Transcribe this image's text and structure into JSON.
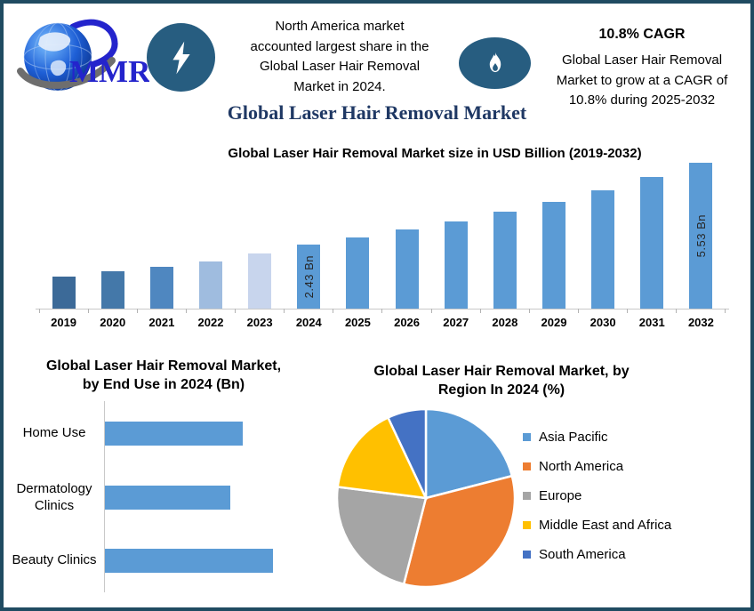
{
  "colors": {
    "frame_border": "#1f4b61",
    "icon_background": "#275d80",
    "main_title": "#1f3864",
    "bar_default": "#5b9bd5",
    "axis_line": "#c9c9c9",
    "logo_blue": "#2424cc"
  },
  "header": {
    "logo": {
      "text": "MMR"
    },
    "statement_lines": [
      "North America market",
      "accounted largest share in the",
      "Global Laser Hair Removal",
      "Market  in 2024."
    ],
    "cagr_heading": "10.8% CAGR",
    "cagr_statement_lines": [
      "Global Laser Hair Removal",
      "Market to grow at a CAGR of",
      "10.8% during 2025-2032"
    ]
  },
  "main_title": "Global Laser Hair Removal Market",
  "chart_data": [
    {
      "id": "market_size",
      "type": "bar",
      "title": "Global Laser Hair Removal Market size in USD Billion (2019-2032)",
      "ylabel": "USD Billion",
      "categories": [
        "2019",
        "2020",
        "2021",
        "2022",
        "2023",
        "2024",
        "2025",
        "2026",
        "2027",
        "2028",
        "2029",
        "2030",
        "2031",
        "2032"
      ],
      "values": [
        1.2,
        1.4,
        1.6,
        1.8,
        2.1,
        2.43,
        2.7,
        3.0,
        3.3,
        3.66,
        4.06,
        4.5,
        4.99,
        5.53
      ],
      "data_labels": {
        "2024": "2.43 Bn",
        "2032": "5.53 Bn"
      },
      "bar_colors": {
        "2019": "#3c6a98",
        "2020": "#4478a9",
        "2021": "#4f87c0",
        "2022": "#9fbcdf",
        "2023": "#c8d5ed",
        "default": "#5b9bd5"
      },
      "ylim": [
        0,
        5.53
      ],
      "grid": false,
      "legend": "none"
    },
    {
      "id": "end_use",
      "type": "bar",
      "orientation": "horizontal",
      "title_lines": [
        "Global Laser Hair Removal Market,",
        "by End Use in 2024 (Bn)"
      ],
      "title": "Global Laser Hair Removal Market, by End Use in 2024 (Bn)",
      "categories": [
        "Home Use",
        "Dermatology Clinics",
        "Beauty Clinics"
      ],
      "values": [
        0.78,
        0.71,
        0.95
      ],
      "bar_color": "#5b9bd5",
      "xlim": [
        0,
        1.0
      ],
      "grid": false,
      "legend": "none"
    },
    {
      "id": "by_region",
      "type": "pie",
      "title_lines": [
        "Global Laser Hair Removal Market, by",
        "Region In 2024 (%)"
      ],
      "title": "Global Laser Hair Removal Market, by Region In 2024 (%)",
      "labels": [
        "Asia Pacific",
        "North America",
        "Europe",
        "Middle East and Africa",
        "South America"
      ],
      "values": [
        21,
        33,
        23,
        16,
        7
      ],
      "colors": [
        "#5b9bd5",
        "#ed7d31",
        "#a5a5a5",
        "#ffc000",
        "#4472c4"
      ],
      "start_angle": "top",
      "direction": "clockwise",
      "legend_position": "right"
    }
  ]
}
